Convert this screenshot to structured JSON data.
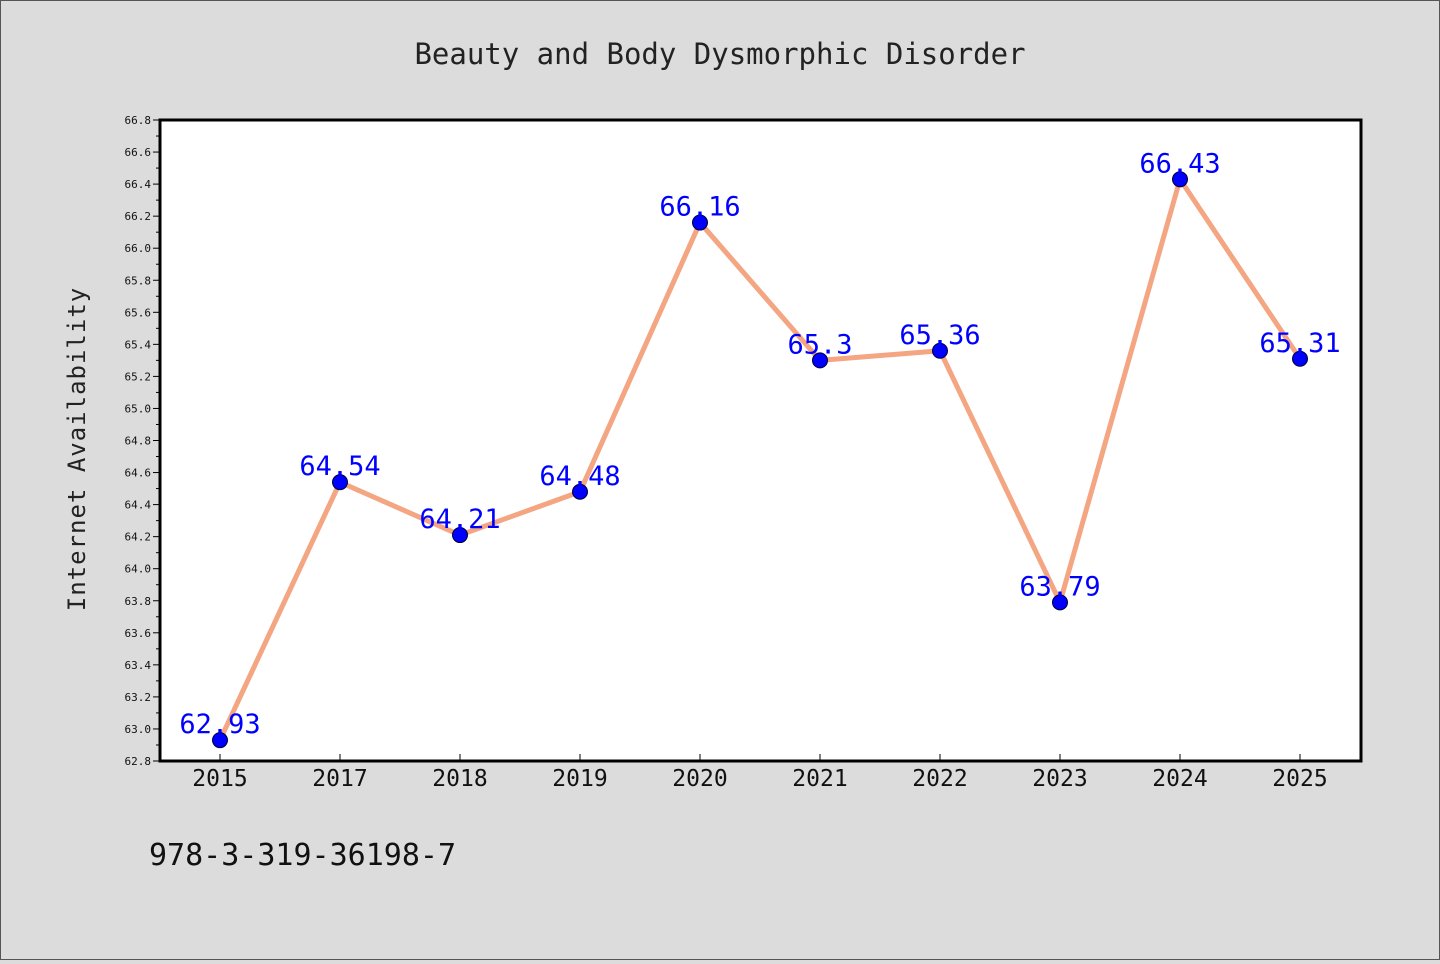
{
  "footer_text": "978-3-319-36198-7",
  "colors": {
    "background": "#dcdcdc",
    "plot_background": "#ffffff",
    "line": "#f4a582",
    "marker": "#0000ff",
    "label": "#0000ff",
    "text": "#222222"
  },
  "chart_data": {
    "type": "line",
    "title": "Beauty and Body Dysmorphic Disorder",
    "xlabel": "",
    "ylabel": "Internet Availability",
    "categories": [
      "2015",
      "2017",
      "2018",
      "2019",
      "2020",
      "2021",
      "2022",
      "2023",
      "2024",
      "2025"
    ],
    "series": [
      {
        "values": [
          62.93,
          64.54,
          64.21,
          64.48,
          66.16,
          65.3,
          65.36,
          63.79,
          66.43,
          65.31
        ]
      }
    ],
    "data_labels": [
      "62.93",
      "64.54",
      "64.21",
      "64.48",
      "66.16",
      "65.3",
      "65.36",
      "63.79",
      "66.43",
      "65.31"
    ],
    "ylim": [
      62.8,
      66.8
    ],
    "yticks": [
      "62.8",
      "63.0",
      "63.2",
      "63.4",
      "63.6",
      "63.8",
      "64.0",
      "64.2",
      "64.4",
      "64.6",
      "64.8",
      "65.0",
      "65.2",
      "65.4",
      "65.6",
      "65.8",
      "66.0",
      "66.2",
      "66.4",
      "66.6",
      "66.8"
    ],
    "grid": false,
    "legend": "none"
  }
}
